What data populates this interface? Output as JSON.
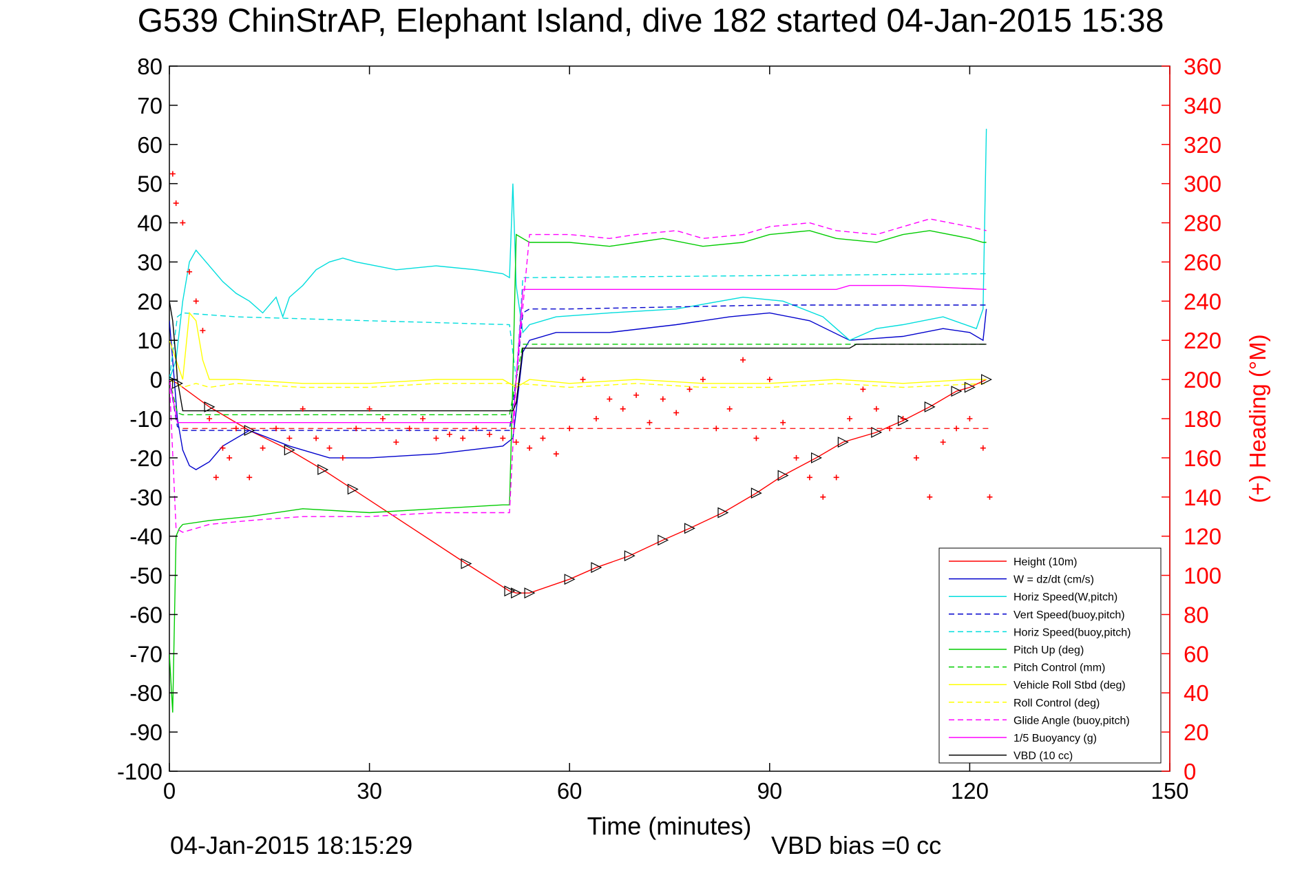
{
  "chart_data": {
    "type": "line",
    "title": "G539 ChinStrAP, Elephant Island, dive 182 started 04-Jan-2015 15:38",
    "xlabel": "Time (minutes)",
    "ylabel": "",
    "ylabel_right": "(+) Heading (°M)",
    "xlim": [
      0,
      150
    ],
    "ylim": [
      -100,
      80
    ],
    "ylim_right": [
      0,
      360
    ],
    "xticks": [
      "0",
      "30",
      "60",
      "90",
      "120",
      "150"
    ],
    "yticks": [
      "80",
      "70",
      "60",
      "50",
      "40",
      "30",
      "20",
      "10",
      "0",
      "-10",
      "-20",
      "-30",
      "-40",
      "-50",
      "-60",
      "-70",
      "-80",
      "-90",
      "-100"
    ],
    "yticks_right": [
      "360",
      "340",
      "320",
      "300",
      "280",
      "260",
      "240",
      "220",
      "200",
      "180",
      "160",
      "140",
      "120",
      "100",
      "80",
      "60",
      "40",
      "20",
      "0"
    ],
    "grid": false,
    "legend_position": "bottom-right",
    "footer_left": "04-Jan-2015 18:15:29",
    "footer_right": "VBD bias =0 cc",
    "series": [
      {
        "name": "Height (10m)",
        "color": "#ff0000",
        "style": "solid",
        "x": [
          0,
          1.2,
          6,
          12,
          18,
          23,
          27.5,
          44.5,
          51,
          52,
          54,
          60,
          64,
          69,
          74,
          78,
          83,
          88,
          92,
          97,
          101,
          106,
          110,
          114,
          118,
          120,
          122.5
        ],
        "y": [
          0,
          -1,
          -7,
          -13,
          -18,
          -23,
          -28,
          -47,
          -54,
          -54.5,
          -54.5,
          -51,
          -48,
          -45,
          -41,
          -38,
          -34,
          -29,
          -24.5,
          -20,
          -16,
          -13.5,
          -10.5,
          -7,
          -3,
          -2,
          0
        ]
      },
      {
        "name": "W = dz/dt (cm/s)",
        "color": "#0000cc",
        "style": "solid",
        "x": [
          0,
          0.5,
          1.2,
          2,
          3,
          4,
          6,
          8,
          12,
          18,
          24,
          30,
          40,
          50,
          51.5,
          52,
          53,
          54,
          58,
          66,
          76,
          84,
          90,
          96,
          102,
          110,
          116,
          120,
          122,
          122.5
        ],
        "y": [
          15,
          5,
          -10,
          -18,
          -22,
          -23,
          -21,
          -17,
          -13,
          -17,
          -20,
          -20,
          -19,
          -17,
          -15,
          -8,
          7,
          10,
          12,
          12,
          14,
          16,
          17,
          15,
          10,
          11,
          13,
          12,
          10,
          18
        ]
      },
      {
        "name": "Horiz Speed(W,pitch)",
        "color": "#00dddd",
        "style": "solid",
        "x": [
          0,
          1,
          2,
          3,
          4,
          5,
          8,
          10,
          12,
          14,
          16,
          17,
          18,
          20,
          22,
          24,
          26,
          28,
          34,
          40,
          46,
          50,
          51,
          51.5,
          52,
          53,
          54,
          58,
          66,
          76,
          86,
          92,
          98,
          100,
          102,
          106,
          110,
          116,
          121,
          122,
          122.5
        ],
        "y": [
          0,
          5,
          20,
          30,
          33,
          31,
          25,
          22,
          20,
          17,
          21,
          16,
          21,
          24,
          28,
          30,
          31,
          30,
          28,
          29,
          28,
          27,
          26,
          50,
          24,
          12,
          14,
          16,
          17,
          18,
          21,
          20,
          16,
          13,
          10,
          13,
          14,
          16,
          13,
          18,
          64
        ]
      },
      {
        "name": "Vert Speed(buoy,pitch)",
        "color": "#0000cc",
        "style": "dashed",
        "x": [
          0,
          1.2,
          2,
          51,
          52,
          53,
          54,
          60,
          90,
          100,
          122.5
        ],
        "y": [
          0,
          -12,
          -13,
          -13,
          0,
          17,
          18,
          18,
          19,
          19,
          19
        ]
      },
      {
        "name": "Horiz Speed(buoy,pitch)",
        "color": "#00dddd",
        "style": "dashed",
        "x": [
          0,
          1.2,
          2,
          10,
          30,
          51,
          52,
          53,
          54,
          122.5
        ],
        "y": [
          0,
          16,
          17,
          16,
          15,
          14,
          0,
          26,
          26,
          27
        ]
      },
      {
        "name": "Pitch Up (deg)",
        "color": "#00cc00",
        "style": "solid",
        "x": [
          0,
          0.5,
          1,
          1.5,
          2,
          6,
          12,
          20,
          30,
          40,
          50,
          51,
          51.5,
          52,
          54,
          60,
          66,
          70,
          74,
          80,
          86,
          90,
          96,
          100,
          106,
          110,
          114,
          120,
          122,
          122.5
        ],
        "y": [
          -70,
          -85,
          -40,
          -38,
          -37,
          -36,
          -35,
          -33,
          -34,
          -33,
          -32,
          -32,
          0,
          37,
          35,
          35,
          34,
          35,
          36,
          34,
          35,
          37,
          38,
          36,
          35,
          37,
          38,
          36,
          35,
          35
        ]
      },
      {
        "name": "Pitch Control (mm)",
        "color": "#00cc00",
        "style": "dashed",
        "x": [
          0,
          1.2,
          2,
          51,
          52,
          53,
          54,
          122.5
        ],
        "y": [
          0,
          -8.5,
          -9,
          -9,
          0,
          9,
          9,
          9
        ]
      },
      {
        "name": "Vehicle Roll Stbd (deg)",
        "color": "#ffff00",
        "style": "solid",
        "x": [
          0,
          2,
          3,
          4,
          5,
          6,
          10,
          20,
          30,
          40,
          50,
          52,
          54,
          60,
          70,
          80,
          90,
          100,
          110,
          120,
          122.5
        ],
        "y": [
          10,
          0,
          17,
          15,
          5,
          0,
          0,
          -1,
          -1,
          0,
          0,
          -2,
          0,
          -1,
          0,
          -1,
          -1,
          0,
          -1,
          0,
          0
        ]
      },
      {
        "name": "Roll Control (deg)",
        "color": "#ffff00",
        "style": "dashed",
        "x": [
          0,
          2,
          4,
          6,
          10,
          20,
          30,
          40,
          50,
          52,
          60,
          70,
          80,
          90,
          100,
          110,
          122.5
        ],
        "y": [
          0,
          -2,
          -1,
          -2,
          -1,
          -2,
          -2,
          -1,
          -1,
          -1,
          -2,
          -1,
          -2,
          -2,
          -1,
          -2,
          -1
        ]
      },
      {
        "name": "Glide Angle (buoy,pitch)",
        "color": "#ff00ff",
        "style": "dashed",
        "x": [
          0,
          1,
          2,
          6,
          12,
          20,
          30,
          40,
          50,
          51,
          52,
          54,
          60,
          66,
          70,
          76,
          80,
          86,
          90,
          96,
          100,
          106,
          110,
          114,
          120,
          122.5
        ],
        "y": [
          0,
          -38,
          -39,
          -37,
          -36,
          -35,
          -35,
          -34,
          -34,
          -34,
          0,
          37,
          37,
          36,
          37,
          38,
          36,
          37,
          39,
          40,
          38,
          37,
          39,
          41,
          39,
          38
        ]
      },
      {
        "name": "1/5 Buoyancy (g)",
        "color": "#ff00ff",
        "style": "solid",
        "x": [
          0,
          1.2,
          2,
          51,
          51.5,
          52,
          53,
          60,
          100,
          102,
          110,
          122.5
        ],
        "y": [
          0,
          -11,
          -11,
          -11,
          -11,
          0,
          23,
          23,
          23,
          24,
          24,
          23
        ]
      },
      {
        "name": "VBD (10 cc)",
        "color": "#000000",
        "style": "solid",
        "x": [
          0,
          0.5,
          1,
          1.2,
          2,
          51,
          51.5,
          52,
          53,
          54,
          100,
          102,
          103,
          122.5
        ],
        "y": [
          20,
          15,
          5,
          0,
          -8,
          -8,
          -8,
          -6,
          8,
          8,
          8,
          8,
          9,
          9
        ]
      },
      {
        "name": "Heading",
        "color": "#ff0000",
        "style": "markers",
        "axis": "right",
        "x": [
          0.5,
          1,
          2,
          3,
          4,
          5,
          6,
          7,
          8,
          9,
          10,
          12,
          14,
          16,
          18,
          20,
          22,
          24,
          26,
          28,
          30,
          32,
          34,
          36,
          38,
          40,
          42,
          44,
          46,
          48,
          50,
          52,
          54,
          56,
          58,
          60,
          62,
          64,
          66,
          68,
          70,
          72,
          74,
          76,
          78,
          80,
          82,
          84,
          86,
          88,
          90,
          92,
          94,
          96,
          98,
          100,
          102,
          104,
          106,
          108,
          110,
          112,
          114,
          116,
          118,
          120,
          122,
          123
        ],
        "y": [
          305,
          290,
          280,
          255,
          240,
          225,
          180,
          150,
          165,
          160,
          175,
          150,
          165,
          175,
          170,
          185,
          170,
          165,
          160,
          175,
          185,
          180,
          168,
          175,
          180,
          170,
          172,
          170,
          175,
          172,
          170,
          168,
          165,
          170,
          162,
          175,
          200,
          180,
          190,
          185,
          192,
          178,
          190,
          183,
          195,
          200,
          175,
          185,
          210,
          170,
          200,
          178,
          160,
          150,
          140,
          150,
          180,
          195,
          185,
          175,
          180,
          160,
          140,
          168,
          175,
          180,
          165,
          140
        ]
      }
    ]
  }
}
